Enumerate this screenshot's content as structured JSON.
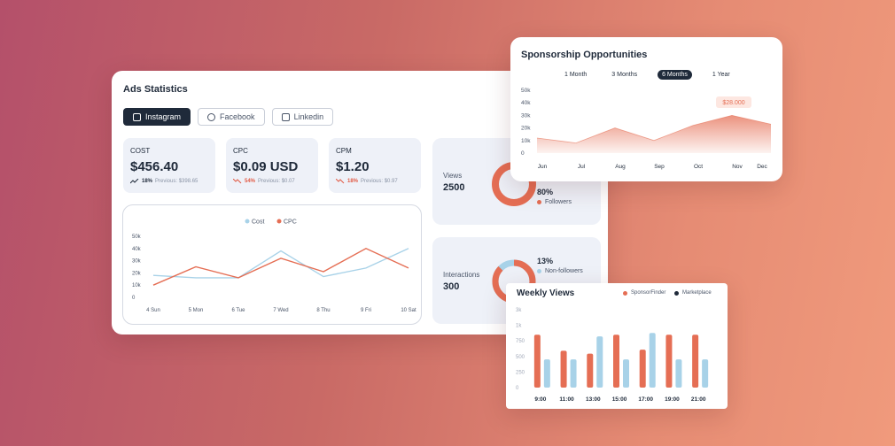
{
  "ads": {
    "title": "Ads Statistics",
    "tabs": [
      {
        "label": "Instagram",
        "icon": "instagram-icon"
      },
      {
        "label": "Facebook",
        "icon": "facebook-icon"
      },
      {
        "label": "Linkedin",
        "icon": "linkedin-icon"
      }
    ],
    "stats": [
      {
        "label": "COST",
        "value": "$456.40",
        "pct": "18%",
        "prev": "Previous: $398.65",
        "trend": "up"
      },
      {
        "label": "CPC",
        "value": "$0.09 USD",
        "pct": "54%",
        "prev": "Previous: $0.07",
        "trend": "down"
      },
      {
        "label": "CPM",
        "value": "$1.20",
        "pct": "18%",
        "prev": "Previous: $0.97",
        "trend": "down"
      }
    ],
    "views": {
      "label": "Views",
      "value": "2500",
      "pct": "80%",
      "legend": "Followers"
    },
    "interactions": {
      "label": "Interactions",
      "value": "300",
      "pct": "13%",
      "legend": "Non-followers"
    }
  },
  "colors": {
    "accent": "#e56e54",
    "light_blue": "#a8d2e8",
    "dark": "#1f2a3a"
  },
  "chart_data": [
    {
      "type": "line",
      "x": [
        "4 Sun",
        "5 Mon",
        "6 Tue",
        "7 Wed",
        "8 Thu",
        "9 Fri",
        "10 Sat"
      ],
      "yticks": [
        "50k",
        "40k",
        "30k",
        "20k",
        "10k",
        "0"
      ],
      "ylim": [
        0,
        50000
      ],
      "series": [
        {
          "name": "Cost",
          "color": "#a8d2e8",
          "values": [
            18000,
            16000,
            16000,
            38000,
            17000,
            24000,
            40000
          ]
        },
        {
          "name": "CPC",
          "color": "#e56e54",
          "values": [
            10000,
            25000,
            16000,
            32000,
            21000,
            40000,
            24000
          ]
        }
      ],
      "legend": "top-center"
    },
    {
      "type": "area",
      "title": "Sponsorship Opportunities",
      "periods": [
        "1 Month",
        "3 Months",
        "6 Months",
        "1 Year"
      ],
      "active_period": "6 Months",
      "x": [
        "Jun",
        "Jul",
        "Aug",
        "Sep",
        "Oct",
        "Nov",
        "Dec"
      ],
      "yticks": [
        "50k",
        "40k",
        "30k",
        "20k",
        "10k",
        "0"
      ],
      "ylim": [
        0,
        50000
      ],
      "values": [
        12000,
        8000,
        20000,
        10000,
        22000,
        30000,
        23000
      ],
      "annotation": "$28.000",
      "color": "#e56e54"
    },
    {
      "type": "bar",
      "title": "Weekly Views",
      "categories": [
        "9:00",
        "11:00",
        "13:00",
        "15:00",
        "17:00",
        "19:00",
        "21:00"
      ],
      "yticks": [
        "3k",
        "1k",
        "750",
        "500",
        "250",
        "0"
      ],
      "series": [
        {
          "name": "SponsorFinder",
          "color": "#e56e54",
          "values": [
            920,
            640,
            590,
            920,
            660,
            920,
            920
          ]
        },
        {
          "name": "Marketplace",
          "color": "#a8d2e8",
          "values": [
            490,
            490,
            890,
            490,
            950,
            490,
            490
          ]
        }
      ],
      "legend": "top-right"
    }
  ]
}
